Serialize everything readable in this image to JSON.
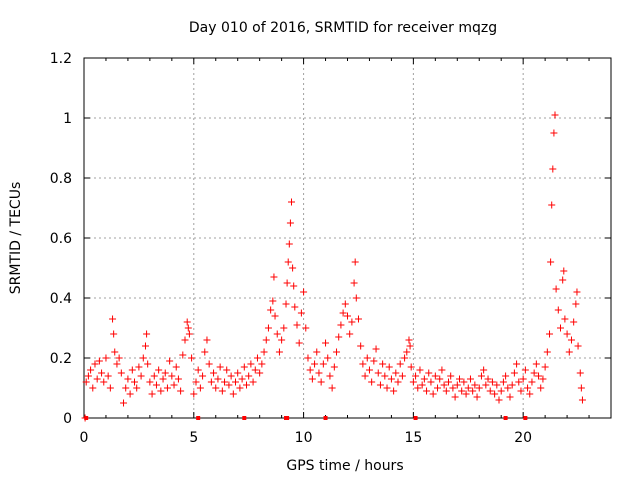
{
  "chart_data": {
    "type": "scatter",
    "title": "Day 010 of 2016, SRMTID for receiver mqzg",
    "xlabel": "GPS time / hours",
    "ylabel": "SRMTID / TECUs",
    "xlim": [
      0,
      24
    ],
    "ylim": [
      0,
      1.2
    ],
    "x_ticks": [
      0,
      5,
      10,
      15,
      20
    ],
    "x_tick_labels": [
      "0",
      "5",
      "10",
      "15",
      "20"
    ],
    "y_ticks": [
      0,
      0.2,
      0.4,
      0.6,
      0.8,
      1.0,
      1.2
    ],
    "y_tick_labels": [
      "0",
      "0.2",
      "0.4",
      "0.6",
      "0.8",
      "1",
      "1.2"
    ],
    "grid": true,
    "marker": "+",
    "color": "#ff0000",
    "series": [
      {
        "name": "SRMTID",
        "points": [
          [
            0.05,
            0.0
          ],
          [
            0.1,
            0.12
          ],
          [
            0.2,
            0.14
          ],
          [
            0.3,
            0.16
          ],
          [
            0.4,
            0.1
          ],
          [
            0.5,
            0.18
          ],
          [
            0.6,
            0.13
          ],
          [
            0.7,
            0.19
          ],
          [
            0.8,
            0.15
          ],
          [
            0.9,
            0.12
          ],
          [
            1.0,
            0.2
          ],
          [
            1.1,
            0.14
          ],
          [
            1.2,
            0.1
          ],
          [
            1.3,
            0.33
          ],
          [
            1.35,
            0.28
          ],
          [
            1.4,
            0.22
          ],
          [
            1.5,
            0.18
          ],
          [
            1.6,
            0.2
          ],
          [
            1.7,
            0.15
          ],
          [
            1.8,
            0.05
          ],
          [
            1.9,
            0.1
          ],
          [
            2.0,
            0.13
          ],
          [
            2.1,
            0.08
          ],
          [
            2.2,
            0.16
          ],
          [
            2.3,
            0.12
          ],
          [
            2.4,
            0.1
          ],
          [
            2.5,
            0.17
          ],
          [
            2.6,
            0.14
          ],
          [
            2.7,
            0.2
          ],
          [
            2.8,
            0.24
          ],
          [
            2.85,
            0.28
          ],
          [
            2.9,
            0.18
          ],
          [
            3.0,
            0.12
          ],
          [
            3.1,
            0.08
          ],
          [
            3.2,
            0.14
          ],
          [
            3.3,
            0.11
          ],
          [
            3.4,
            0.16
          ],
          [
            3.5,
            0.09
          ],
          [
            3.6,
            0.13
          ],
          [
            3.7,
            0.15
          ],
          [
            3.8,
            0.1
          ],
          [
            3.9,
            0.19
          ],
          [
            4.0,
            0.14
          ],
          [
            4.1,
            0.11
          ],
          [
            4.2,
            0.17
          ],
          [
            4.3,
            0.13
          ],
          [
            4.4,
            0.09
          ],
          [
            4.5,
            0.21
          ],
          [
            4.6,
            0.26
          ],
          [
            4.7,
            0.32
          ],
          [
            4.75,
            0.3
          ],
          [
            4.8,
            0.28
          ],
          [
            4.9,
            0.2
          ],
          [
            5.0,
            0.08
          ],
          [
            5.1,
            0.12
          ],
          [
            5.2,
            0.16
          ],
          [
            5.3,
            0.1
          ],
          [
            5.4,
            0.14
          ],
          [
            5.5,
            0.22
          ],
          [
            5.6,
            0.26
          ],
          [
            5.7,
            0.18
          ],
          [
            5.8,
            0.12
          ],
          [
            5.9,
            0.15
          ],
          [
            6.0,
            0.1
          ],
          [
            6.1,
            0.13
          ],
          [
            6.2,
            0.17
          ],
          [
            6.3,
            0.09
          ],
          [
            6.4,
            0.12
          ],
          [
            6.5,
            0.16
          ],
          [
            6.6,
            0.11
          ],
          [
            6.7,
            0.14
          ],
          [
            6.8,
            0.08
          ],
          [
            6.9,
            0.12
          ],
          [
            7.0,
            0.15
          ],
          [
            7.1,
            0.1
          ],
          [
            7.2,
            0.13
          ],
          [
            7.3,
            0.17
          ],
          [
            7.4,
            0.11
          ],
          [
            7.5,
            0.14
          ],
          [
            7.6,
            0.18
          ],
          [
            7.7,
            0.12
          ],
          [
            7.8,
            0.16
          ],
          [
            7.9,
            0.2
          ],
          [
            8.0,
            0.15
          ],
          [
            8.1,
            0.18
          ],
          [
            8.2,
            0.22
          ],
          [
            8.3,
            0.26
          ],
          [
            8.4,
            0.3
          ],
          [
            8.5,
            0.36
          ],
          [
            8.6,
            0.39
          ],
          [
            8.65,
            0.47
          ],
          [
            8.7,
            0.34
          ],
          [
            8.8,
            0.28
          ],
          [
            8.9,
            0.22
          ],
          [
            9.0,
            0.26
          ],
          [
            9.1,
            0.3
          ],
          [
            9.2,
            0.38
          ],
          [
            9.25,
            0.45
          ],
          [
            9.3,
            0.52
          ],
          [
            9.35,
            0.58
          ],
          [
            9.4,
            0.65
          ],
          [
            9.45,
            0.72
          ],
          [
            9.5,
            0.5
          ],
          [
            9.55,
            0.44
          ],
          [
            9.6,
            0.37
          ],
          [
            9.7,
            0.31
          ],
          [
            9.8,
            0.25
          ],
          [
            9.9,
            0.35
          ],
          [
            10.0,
            0.42
          ],
          [
            10.1,
            0.3
          ],
          [
            10.2,
            0.2
          ],
          [
            10.3,
            0.16
          ],
          [
            10.4,
            0.13
          ],
          [
            10.5,
            0.18
          ],
          [
            10.6,
            0.22
          ],
          [
            10.7,
            0.15
          ],
          [
            10.8,
            0.12
          ],
          [
            10.9,
            0.18
          ],
          [
            11.0,
            0.25
          ],
          [
            11.1,
            0.2
          ],
          [
            11.2,
            0.14
          ],
          [
            11.3,
            0.1
          ],
          [
            11.4,
            0.17
          ],
          [
            11.5,
            0.22
          ],
          [
            11.6,
            0.27
          ],
          [
            11.7,
            0.31
          ],
          [
            11.8,
            0.35
          ],
          [
            11.9,
            0.38
          ],
          [
            12.0,
            0.34
          ],
          [
            12.1,
            0.28
          ],
          [
            12.2,
            0.32
          ],
          [
            12.3,
            0.45
          ],
          [
            12.35,
            0.52
          ],
          [
            12.4,
            0.4
          ],
          [
            12.5,
            0.33
          ],
          [
            12.6,
            0.24
          ],
          [
            12.7,
            0.18
          ],
          [
            12.8,
            0.14
          ],
          [
            12.9,
            0.2
          ],
          [
            13.0,
            0.16
          ],
          [
            13.1,
            0.12
          ],
          [
            13.2,
            0.19
          ],
          [
            13.3,
            0.23
          ],
          [
            13.4,
            0.15
          ],
          [
            13.5,
            0.11
          ],
          [
            13.6,
            0.18
          ],
          [
            13.7,
            0.14
          ],
          [
            13.8,
            0.1
          ],
          [
            13.9,
            0.17
          ],
          [
            14.0,
            0.13
          ],
          [
            14.1,
            0.09
          ],
          [
            14.2,
            0.15
          ],
          [
            14.3,
            0.12
          ],
          [
            14.4,
            0.18
          ],
          [
            14.5,
            0.14
          ],
          [
            14.6,
            0.2
          ],
          [
            14.7,
            0.22
          ],
          [
            14.8,
            0.26
          ],
          [
            14.85,
            0.24
          ],
          [
            14.9,
            0.17
          ],
          [
            15.0,
            0.12
          ],
          [
            15.1,
            0.14
          ],
          [
            15.2,
            0.1
          ],
          [
            15.3,
            0.16
          ],
          [
            15.4,
            0.11
          ],
          [
            15.5,
            0.13
          ],
          [
            15.6,
            0.09
          ],
          [
            15.7,
            0.15
          ],
          [
            15.8,
            0.12
          ],
          [
            15.9,
            0.08
          ],
          [
            16.0,
            0.14
          ],
          [
            16.1,
            0.1
          ],
          [
            16.2,
            0.13
          ],
          [
            16.3,
            0.16
          ],
          [
            16.4,
            0.11
          ],
          [
            16.5,
            0.09
          ],
          [
            16.6,
            0.12
          ],
          [
            16.7,
            0.14
          ],
          [
            16.8,
            0.1
          ],
          [
            16.9,
            0.07
          ],
          [
            17.0,
            0.11
          ],
          [
            17.1,
            0.13
          ],
          [
            17.2,
            0.09
          ],
          [
            17.3,
            0.12
          ],
          [
            17.4,
            0.08
          ],
          [
            17.5,
            0.1
          ],
          [
            17.6,
            0.13
          ],
          [
            17.7,
            0.09
          ],
          [
            17.8,
            0.11
          ],
          [
            17.9,
            0.07
          ],
          [
            18.0,
            0.1
          ],
          [
            18.1,
            0.14
          ],
          [
            18.2,
            0.16
          ],
          [
            18.3,
            0.11
          ],
          [
            18.4,
            0.13
          ],
          [
            18.5,
            0.09
          ],
          [
            18.6,
            0.12
          ],
          [
            18.7,
            0.08
          ],
          [
            18.8,
            0.11
          ],
          [
            18.9,
            0.06
          ],
          [
            19.0,
            0.09
          ],
          [
            19.1,
            0.12
          ],
          [
            19.2,
            0.14
          ],
          [
            19.3,
            0.1
          ],
          [
            19.4,
            0.07
          ],
          [
            19.5,
            0.11
          ],
          [
            19.6,
            0.15
          ],
          [
            19.7,
            0.18
          ],
          [
            19.8,
            0.12
          ],
          [
            19.9,
            0.09
          ],
          [
            20.0,
            0.13
          ],
          [
            20.1,
            0.16
          ],
          [
            20.2,
            0.1
          ],
          [
            20.3,
            0.08
          ],
          [
            20.4,
            0.12
          ],
          [
            20.5,
            0.15
          ],
          [
            20.6,
            0.18
          ],
          [
            20.7,
            0.14
          ],
          [
            20.8,
            0.1
          ],
          [
            20.9,
            0.13
          ],
          [
            21.0,
            0.17
          ],
          [
            21.1,
            0.22
          ],
          [
            21.2,
            0.28
          ],
          [
            21.25,
            0.52
          ],
          [
            21.3,
            0.71
          ],
          [
            21.35,
            0.83
          ],
          [
            21.4,
            0.95
          ],
          [
            21.45,
            1.01
          ],
          [
            21.5,
            0.43
          ],
          [
            21.6,
            0.36
          ],
          [
            21.7,
            0.3
          ],
          [
            21.8,
            0.46
          ],
          [
            21.85,
            0.49
          ],
          [
            21.9,
            0.33
          ],
          [
            22.0,
            0.28
          ],
          [
            22.1,
            0.22
          ],
          [
            22.2,
            0.26
          ],
          [
            22.3,
            0.32
          ],
          [
            22.4,
            0.38
          ],
          [
            22.45,
            0.42
          ],
          [
            22.5,
            0.24
          ],
          [
            22.6,
            0.15
          ],
          [
            22.65,
            0.1
          ],
          [
            22.7,
            0.06
          ]
        ]
      }
    ],
    "zero_markers_x": [
      0.1,
      5.2,
      7.3,
      9.2,
      9.25,
      11.0,
      15.1,
      19.2,
      20.1
    ]
  }
}
